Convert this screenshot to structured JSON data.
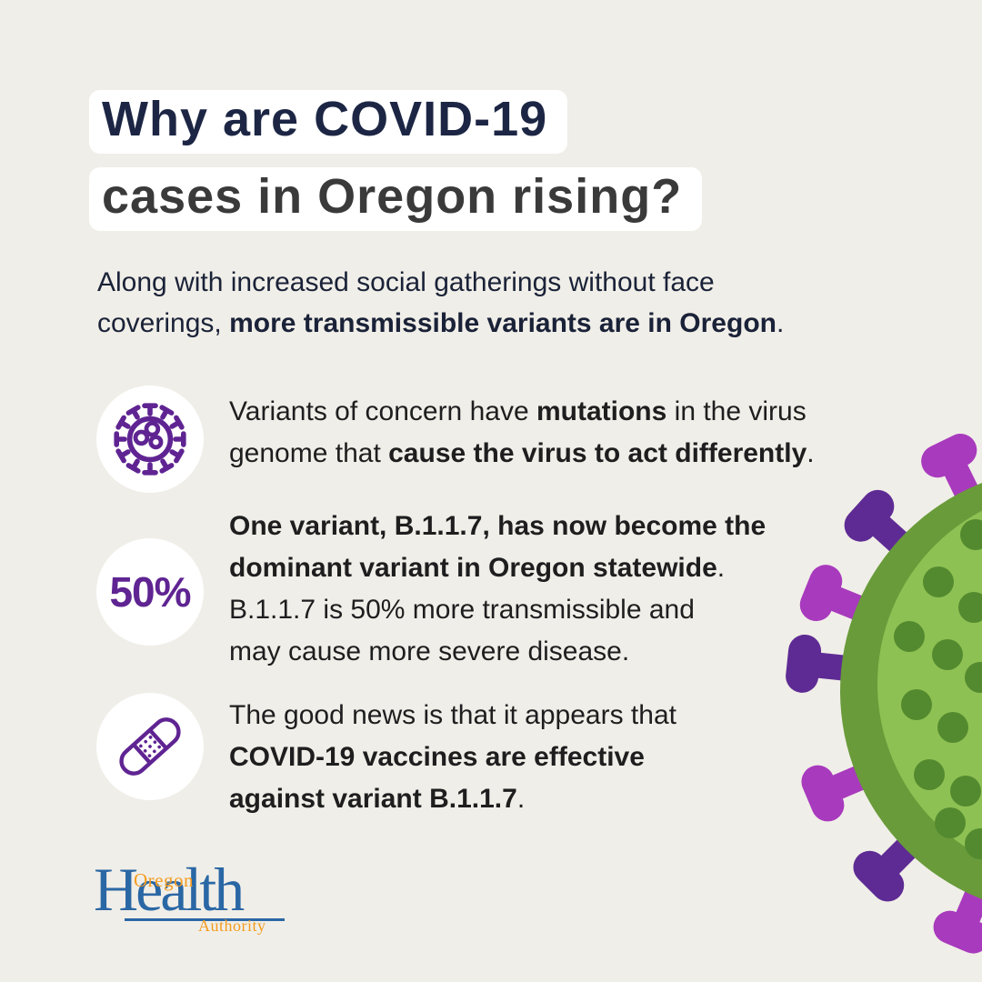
{
  "colors": {
    "background": "#f0eee8",
    "highlight": "#ffffff",
    "title_navy": "#1c2644",
    "title_charcoal": "#3b3a3a",
    "intro_navy": "#1a2238",
    "body_text": "#1e1e1f",
    "icon_purple": "#5f2492",
    "spike_light": "#a83abd",
    "spike_dark": "#5e2b94",
    "virus_rim": "#699b3a",
    "virus_body": "#8ec153",
    "virus_dot": "#548a2f",
    "logo_blue": "#2a67a5",
    "logo_orange": "#f49c1f"
  },
  "title": {
    "line1": "Why are COVID-19",
    "line2": "cases in Oregon rising?"
  },
  "intro": {
    "lines": [
      [
        {
          "t": "Along with increased social gatherings without face",
          "b": false
        }
      ],
      [
        {
          "t": "coverings, ",
          "b": false
        },
        {
          "t": "more transmissible variants are in Oregon",
          "b": true
        },
        {
          "t": ".",
          "b": false
        }
      ]
    ]
  },
  "items": [
    {
      "icon": "virus-icon",
      "lines": [
        [
          {
            "t": "Variants of concern have ",
            "b": false
          },
          {
            "t": "mutations",
            "b": true
          },
          {
            "t": " in the virus",
            "b": false
          }
        ],
        [
          {
            "t": "genome that ",
            "b": false
          },
          {
            "t": "cause the virus to act differently",
            "b": true
          },
          {
            "t": ".",
            "b": false
          }
        ]
      ]
    },
    {
      "icon": "percentage-badge",
      "badge": "50%",
      "lines": [
        [
          {
            "t": "One variant, B.1.1.7, has now become the",
            "b": true
          }
        ],
        [
          {
            "t": "dominant variant in Oregon statewide",
            "b": true
          },
          {
            "t": ".",
            "b": false
          }
        ],
        [
          {
            "t": "B.1.1.7 is 50% more transmissible and",
            "b": false
          }
        ],
        [
          {
            "t": "may cause more severe disease.",
            "b": false
          }
        ]
      ]
    },
    {
      "icon": "bandage-icon",
      "lines": [
        [
          {
            "t": "The good news is that it appears that",
            "b": false
          }
        ],
        [
          {
            "t": "COVID-19 vaccines are effective",
            "b": true
          }
        ],
        [
          {
            "t": "against variant B.1.1.7",
            "b": true
          },
          {
            "t": ".",
            "b": false
          }
        ]
      ]
    }
  ],
  "logo": {
    "oregon": "Oregon",
    "health": "Health",
    "authority": "Authority"
  }
}
